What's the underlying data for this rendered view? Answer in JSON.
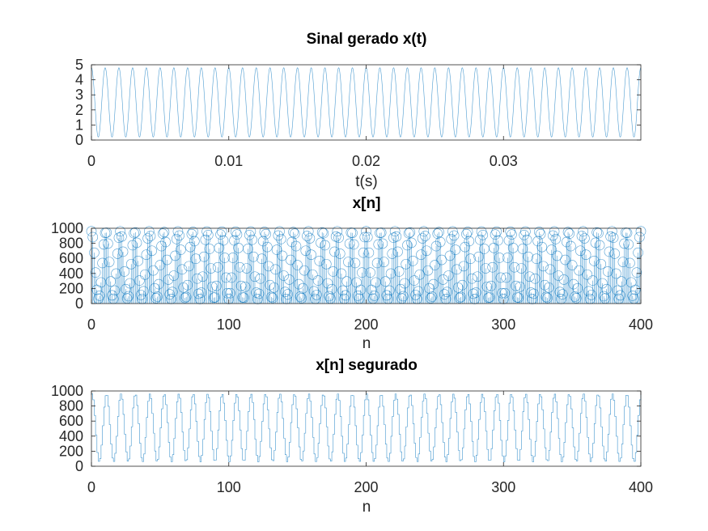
{
  "series_color": "#0072bd",
  "chart_data": [
    {
      "type": "line",
      "title": "Sinal gerado x(t)",
      "xlabel": "t(s)",
      "ylabel": "",
      "xlim": [
        0,
        0.04
      ],
      "ylim": [
        0,
        5
      ],
      "xticks": [
        0,
        0.01,
        0.02,
        0.03
      ],
      "xtick_labels": [
        "0",
        "0.01",
        "0.02",
        "0.03"
      ],
      "yticks": [
        0,
        1,
        2,
        3,
        4,
        5
      ],
      "ytick_labels": [
        "0",
        "1",
        "2",
        "3",
        "4",
        "5"
      ],
      "signal": {
        "offset": 2.5,
        "amplitude": 2.3,
        "frequency_hz": 1000,
        "phase_rad": 1.5708
      },
      "grid": false
    },
    {
      "type": "stem",
      "title": "x[n]",
      "xlabel": "n",
      "ylabel": "",
      "xlim": [
        0,
        400
      ],
      "ylim": [
        0,
        1000
      ],
      "xticks": [
        0,
        100,
        200,
        300,
        400
      ],
      "xtick_labels": [
        "0",
        "100",
        "200",
        "300",
        "400"
      ],
      "yticks": [
        0,
        200,
        400,
        600,
        800,
        1000
      ],
      "ytick_labels": [
        "0",
        "200",
        "400",
        "600",
        "800",
        "1000"
      ],
      "signal": {
        "offset": 510,
        "amplitude": 450,
        "cycles_per_sample": 0.095,
        "phase_rad": 1.5708
      },
      "n_range": [
        0,
        400
      ],
      "grid": false
    },
    {
      "type": "step",
      "title": "x[n] segurado",
      "xlabel": "n",
      "ylabel": "",
      "xlim": [
        0,
        400
      ],
      "ylim": [
        0,
        1000
      ],
      "xticks": [
        0,
        100,
        200,
        300,
        400
      ],
      "xtick_labels": [
        "0",
        "100",
        "200",
        "300",
        "400"
      ],
      "yticks": [
        0,
        200,
        400,
        600,
        800,
        1000
      ],
      "ytick_labels": [
        "0",
        "200",
        "400",
        "600",
        "800",
        "1000"
      ],
      "signal": {
        "offset": 510,
        "amplitude": 450,
        "cycles_per_sample": 0.095,
        "phase_rad": 1.5708
      },
      "n_range": [
        0,
        400
      ],
      "grid": false
    }
  ]
}
